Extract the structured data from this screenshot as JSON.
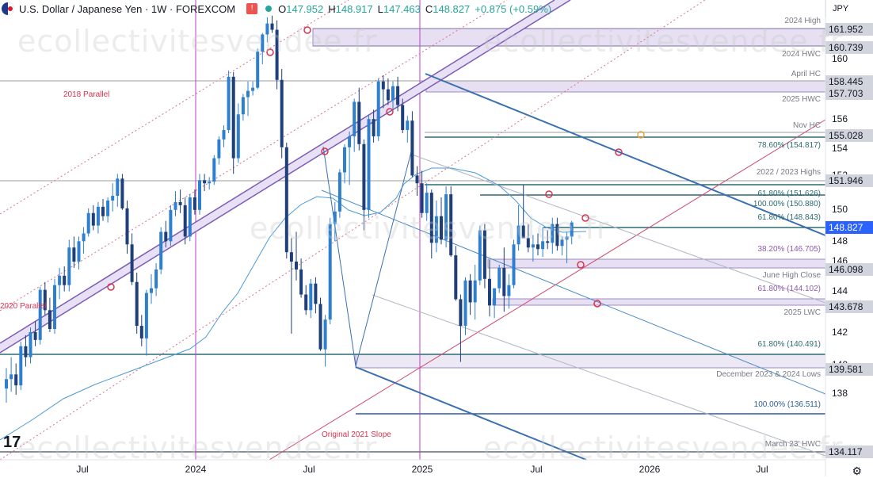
{
  "header": {
    "title": "U.S. Dollar / Japanese Yen · 1W · FOREXCOM",
    "open_label": "O",
    "open": "147.952",
    "high_label": "H",
    "high": "148.917",
    "low_label": "L",
    "low": "147.463",
    "close_label": "C",
    "close": "148.827",
    "change": "+0.875 (+0.59%)"
  },
  "currency_button": "JPY",
  "watermark": "ecollectivitesvendee.fr",
  "logo": "17",
  "chart_data": {
    "type": "candlestick",
    "symbol": "USDJPY",
    "timeframe": "1W",
    "x_ticks": [
      "Jul",
      "2024",
      "Jul",
      "2025",
      "Jul",
      "2026",
      "Jul"
    ],
    "y_ticks": [
      138.0,
      140.0,
      142.0,
      144.0,
      146.0,
      148.0,
      150.0,
      152.0,
      154.0,
      156.0,
      160.0,
      162.0
    ],
    "ylim": [
      133.5,
      163.0
    ],
    "price_labels": [
      {
        "value": "161.952",
        "style": "grey"
      },
      {
        "value": "160.739",
        "style": "grey"
      },
      {
        "value": "158.445",
        "style": "grey"
      },
      {
        "value": "157.703",
        "style": "grey"
      },
      {
        "value": "155.028",
        "style": "grey"
      },
      {
        "value": "151.946",
        "style": "grey"
      },
      {
        "value": "148.827",
        "style": "highlight"
      },
      {
        "value": "146.098",
        "style": "grey"
      },
      {
        "value": "143.678",
        "style": "grey"
      },
      {
        "value": "139.581",
        "style": "grey"
      },
      {
        "value": "134.117",
        "style": "grey"
      }
    ],
    "annotations": [
      "2024 High",
      "2024 HWC",
      "April HC",
      "2025 HWC",
      "Nov HC",
      "78.60% (154.817)",
      "2022 / 2023 Highs",
      "61.80% (151.626)",
      "100.00% (150.880)",
      "61.80% (148.843)",
      "38.20% (146.705)",
      "June High Close",
      "61.80% (144.102)",
      "2025 LWC",
      "61.80% (140.491)",
      "December 2023 & 2024 Lows",
      "100.00% (136.511)",
      "March 23' HWC",
      "2018 Parallel",
      "2020 Parallel",
      "Original 2021 Slope"
    ],
    "candles": [
      [
        138.2,
        139.5,
        137.3,
        138.8
      ],
      [
        138.8,
        140.2,
        138.0,
        139.1
      ],
      [
        139.1,
        139.8,
        137.8,
        138.4
      ],
      [
        138.4,
        141.2,
        138.1,
        140.9
      ],
      [
        140.9,
        141.6,
        139.6,
        140.2
      ],
      [
        140.2,
        142.1,
        139.8,
        141.8
      ],
      [
        141.8,
        142.5,
        140.9,
        141.3
      ],
      [
        141.3,
        144.7,
        141.0,
        144.5
      ],
      [
        144.5,
        145.0,
        142.9,
        143.2
      ],
      [
        143.2,
        144.0,
        141.8,
        142.0
      ],
      [
        142.0,
        145.2,
        141.7,
        144.8
      ],
      [
        144.8,
        145.9,
        143.9,
        145.4
      ],
      [
        145.4,
        146.0,
        144.4,
        144.8
      ],
      [
        144.8,
        147.7,
        144.4,
        147.2
      ],
      [
        147.2,
        147.9,
        145.9,
        146.3
      ],
      [
        146.3,
        147.9,
        145.8,
        147.6
      ],
      [
        147.6,
        148.5,
        146.8,
        148.1
      ],
      [
        148.1,
        149.7,
        147.9,
        149.4
      ],
      [
        149.4,
        149.9,
        148.3,
        148.6
      ],
      [
        148.6,
        150.1,
        148.1,
        149.8
      ],
      [
        149.8,
        150.3,
        148.9,
        149.2
      ],
      [
        149.2,
        150.4,
        148.8,
        150.2
      ],
      [
        150.2,
        151.3,
        149.5,
        150.5
      ],
      [
        150.5,
        151.9,
        149.8,
        151.6
      ],
      [
        151.6,
        151.9,
        149.6,
        149.7
      ],
      [
        149.7,
        150.2,
        146.8,
        147.4
      ],
      [
        147.4,
        148.1,
        144.8,
        145.0
      ],
      [
        145.0,
        145.6,
        141.7,
        142.2
      ],
      [
        142.2,
        142.9,
        140.9,
        141.4
      ],
      [
        141.4,
        144.5,
        140.3,
        144.3
      ],
      [
        144.3,
        145.5,
        143.6,
        144.6
      ],
      [
        144.6,
        146.2,
        144.1,
        145.8
      ],
      [
        145.8,
        148.5,
        145.5,
        148.2
      ],
      [
        148.2,
        148.9,
        147.2,
        147.6
      ],
      [
        147.6,
        149.9,
        147.3,
        149.6
      ],
      [
        149.6,
        150.8,
        149.2,
        150.1
      ],
      [
        150.1,
        150.9,
        149.4,
        149.9
      ],
      [
        149.9,
        150.4,
        147.4,
        147.9
      ],
      [
        147.9,
        150.6,
        147.6,
        150.4
      ],
      [
        150.4,
        150.9,
        149.3,
        149.6
      ],
      [
        149.6,
        151.9,
        149.3,
        151.5
      ],
      [
        151.5,
        151.9,
        150.8,
        151.3
      ],
      [
        151.3,
        151.7,
        150.9,
        151.4
      ],
      [
        151.4,
        153.1,
        151.2,
        152.9
      ],
      [
        152.9,
        154.3,
        152.5,
        154.1
      ],
      [
        154.1,
        155.0,
        153.6,
        154.7
      ],
      [
        154.7,
        158.5,
        154.5,
        158.1
      ],
      [
        158.1,
        158.4,
        151.9,
        152.9
      ],
      [
        152.9,
        156.4,
        152.6,
        155.7
      ],
      [
        155.7,
        157.0,
        155.3,
        156.8
      ],
      [
        156.8,
        157.8,
        155.6,
        157.2
      ],
      [
        157.2,
        157.8,
        156.9,
        157.4
      ],
      [
        157.4,
        159.9,
        157.3,
        159.7
      ],
      [
        159.7,
        160.9,
        158.9,
        160.8
      ],
      [
        160.8,
        161.9,
        160.3,
        161.5
      ],
      [
        161.5,
        162.0,
        160.9,
        161.1
      ],
      [
        161.1,
        161.7,
        157.3,
        157.9
      ],
      [
        157.9,
        158.6,
        152.9,
        153.6
      ],
      [
        153.6,
        153.9,
        146.5,
        146.9
      ],
      [
        146.9,
        147.8,
        141.7,
        146.3
      ],
      [
        146.3,
        148.2,
        145.1,
        145.8
      ],
      [
        145.8,
        146.5,
        144.0,
        144.2
      ],
      [
        144.2,
        144.8,
        142.9,
        143.2
      ],
      [
        143.2,
        145.2,
        142.7,
        144.9
      ],
      [
        144.9,
        145.3,
        143.0,
        143.6
      ],
      [
        143.6,
        144.0,
        140.6,
        140.7
      ],
      [
        140.7,
        142.9,
        139.6,
        142.6
      ],
      [
        142.6,
        149.1,
        142.3,
        148.7
      ],
      [
        148.7,
        150.1,
        147.6,
        149.5
      ],
      [
        149.5,
        152.2,
        149.1,
        152.0
      ],
      [
        152.0,
        153.8,
        151.3,
        153.6
      ],
      [
        153.6,
        154.6,
        151.2,
        154.3
      ],
      [
        154.3,
        156.7,
        153.3,
        156.5
      ],
      [
        156.5,
        157.4,
        153.4,
        153.8
      ],
      [
        153.8,
        154.1,
        148.3,
        149.6
      ],
      [
        149.6,
        155.7,
        149.1,
        155.4
      ],
      [
        155.4,
        156.0,
        153.9,
        154.3
      ],
      [
        154.3,
        158.0,
        154.0,
        157.8
      ],
      [
        157.8,
        158.2,
        156.1,
        157.3
      ],
      [
        157.3,
        158.0,
        156.3,
        156.6
      ],
      [
        156.6,
        157.8,
        155.9,
        157.5
      ],
      [
        157.5,
        158.1,
        155.9,
        156.3
      ],
      [
        156.3,
        156.7,
        154.5,
        154.7
      ],
      [
        154.7,
        155.6,
        153.9,
        155.3
      ],
      [
        155.3,
        155.9,
        151.7,
        151.8
      ],
      [
        151.8,
        152.4,
        150.5,
        151.3
      ],
      [
        151.3,
        152.1,
        149.1,
        149.4
      ],
      [
        149.4,
        151.3,
        148.9,
        150.7
      ],
      [
        150.7,
        150.9,
        146.5,
        147.5
      ],
      [
        147.5,
        150.2,
        146.9,
        149.2
      ],
      [
        149.2,
        150.4,
        147.4,
        147.7
      ],
      [
        147.7,
        151.1,
        147.2,
        150.6
      ],
      [
        150.6,
        151.1,
        146.6,
        146.7
      ],
      [
        146.7,
        147.3,
        143.8,
        143.9
      ],
      [
        143.9,
        144.2,
        139.9,
        142.2
      ],
      [
        142.2,
        145.3,
        141.6,
        145.1
      ],
      [
        145.1,
        145.5,
        142.9,
        143.7
      ],
      [
        143.7,
        146.1,
        142.6,
        145.1
      ],
      [
        145.1,
        148.6,
        144.8,
        148.3
      ],
      [
        148.3,
        148.7,
        144.6,
        145.2
      ],
      [
        145.2,
        146.4,
        142.8,
        143.5
      ],
      [
        143.5,
        144.5,
        142.7,
        144.6
      ],
      [
        144.6,
        146.1,
        144.3,
        145.9
      ],
      [
        145.9,
        147.2,
        143.1,
        144.1
      ],
      [
        144.1,
        145.5,
        143.3,
        144.8
      ],
      [
        144.8,
        147.7,
        144.6,
        147.4
      ],
      [
        147.4,
        149.9,
        147.0,
        148.6
      ],
      [
        148.6,
        151.2,
        147.9,
        147.8
      ],
      [
        147.8,
        148.7,
        146.9,
        147.2
      ],
      [
        147.2,
        148.0,
        146.3,
        147.4
      ],
      [
        147.4,
        148.1,
        146.7,
        147.1
      ],
      [
        147.1,
        148.5,
        146.6,
        147.6
      ],
      [
        147.6,
        148.3,
        147.1,
        147.5
      ],
      [
        147.5,
        149.1,
        146.8,
        148.7
      ],
      [
        148.7,
        149.1,
        147.0,
        147.3
      ],
      [
        147.3,
        147.9,
        146.7,
        147.7
      ],
      [
        147.7,
        148.2,
        146.2,
        147.9
      ],
      [
        147.9,
        148.9,
        147.4,
        148.8
      ]
    ]
  }
}
